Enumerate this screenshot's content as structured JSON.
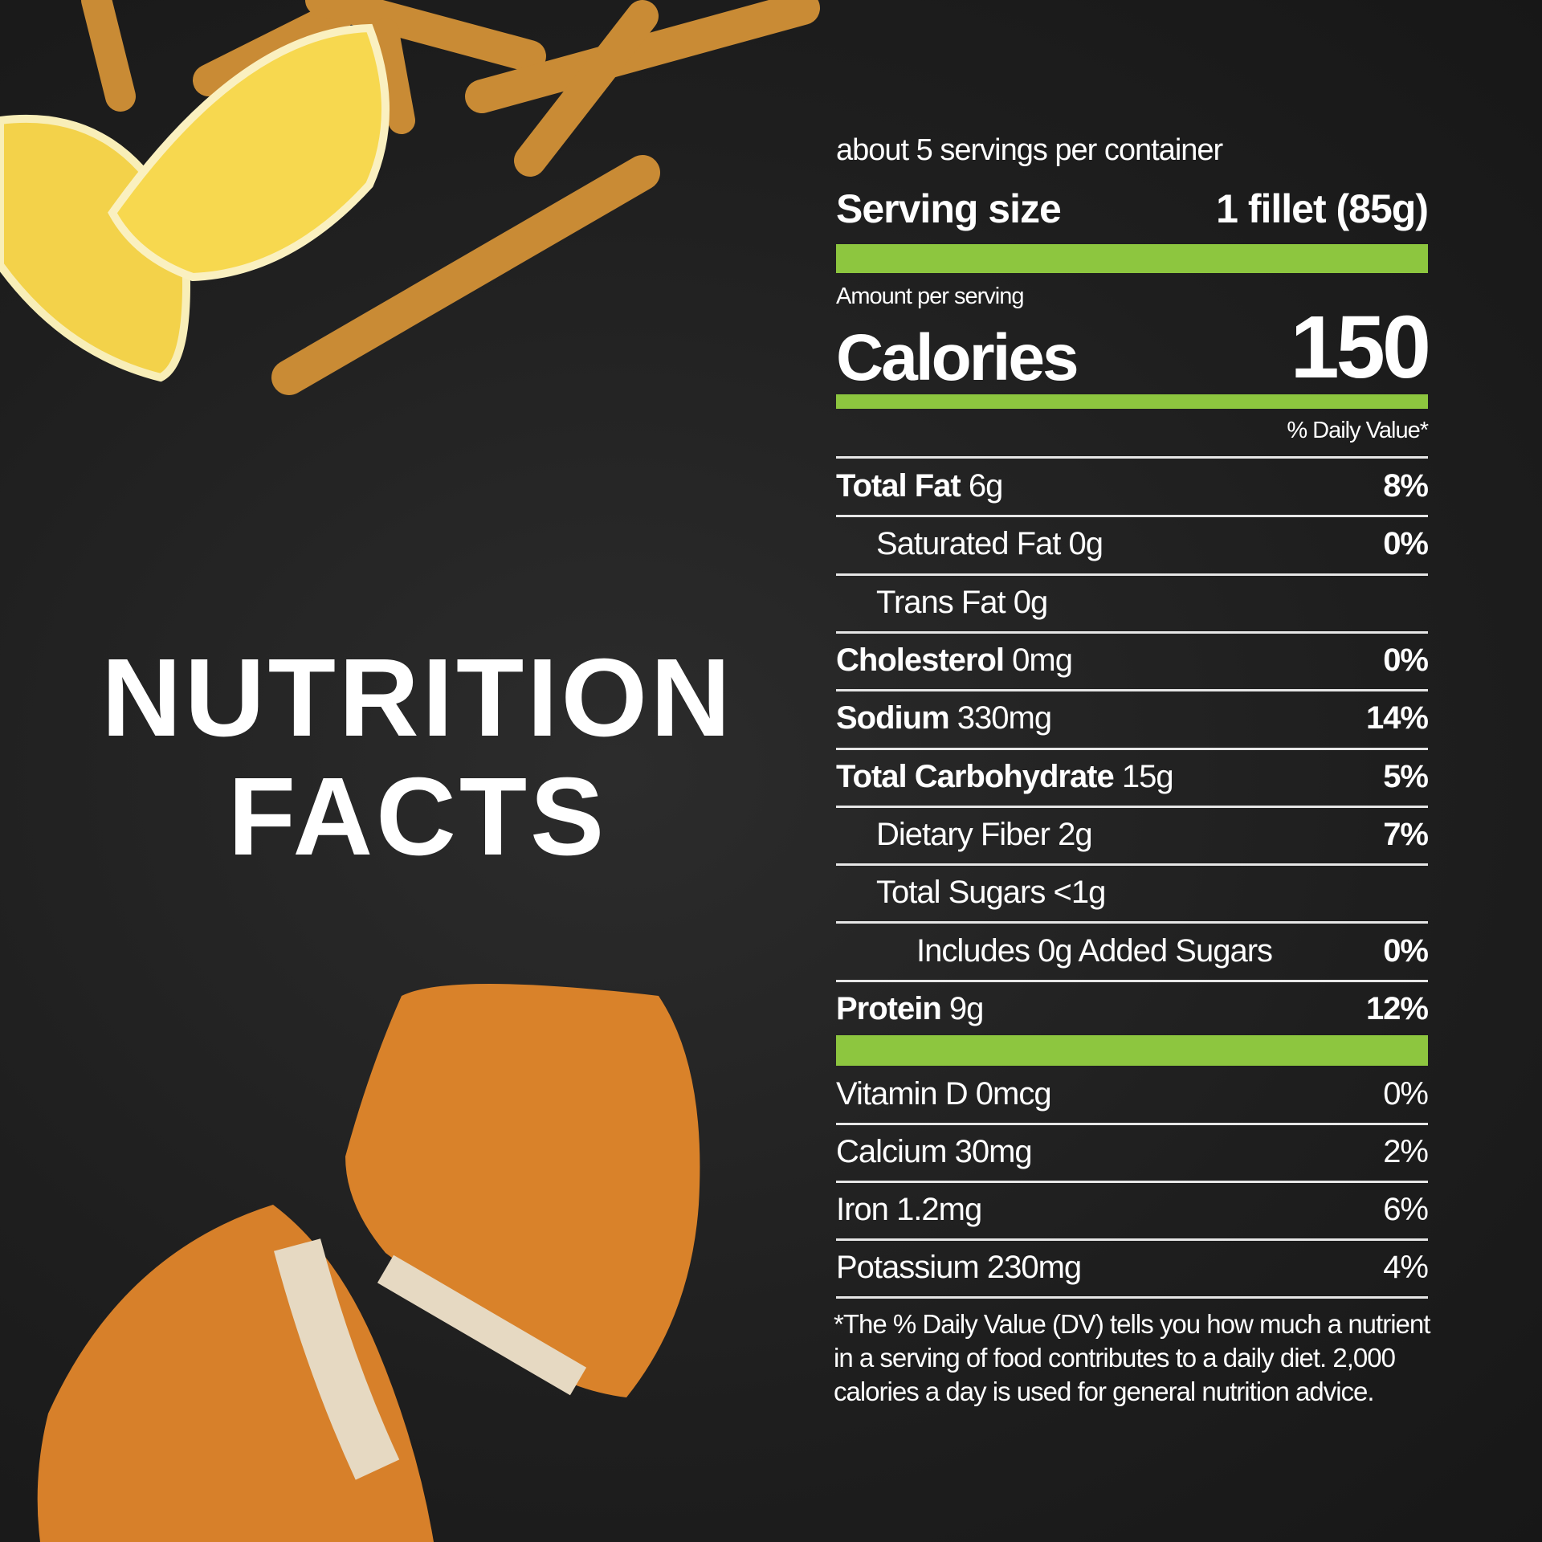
{
  "title": [
    "NUTRITION",
    "FACTS"
  ],
  "servings": "about 5 servings per container",
  "serving_size": {
    "label": "Serving size",
    "value": "1 fillet (85g)"
  },
  "amount_per_serving": "Amount per serving",
  "calories": {
    "label": "Calories",
    "value": 150
  },
  "daily_value_header": "% Daily Value*",
  "nutrients": [
    {
      "name": "Total Fat",
      "amount": "6g",
      "dv": "8%",
      "bold": true,
      "level": 0
    },
    {
      "name": "Saturated Fat",
      "amount": "0g",
      "dv": "0%",
      "bold": false,
      "level": 1
    },
    {
      "name": "Trans Fat",
      "amount": "0g",
      "bold": false,
      "level": 1
    },
    {
      "name": "Cholesterol",
      "amount": "0mg",
      "dv": "0%",
      "bold": true,
      "level": 0
    },
    {
      "name": "Sodium",
      "amount": "330mg",
      "dv": "14%",
      "bold": true,
      "level": 0
    },
    {
      "name": "Total Carbohydrate",
      "amount": "15g",
      "dv": "5%",
      "bold": true,
      "level": 0
    },
    {
      "name": "Dietary Fiber",
      "amount": "2g",
      "dv": "7%",
      "bold": false,
      "level": 1
    },
    {
      "name": "Total Sugars",
      "amount": "<1g",
      "bold": false,
      "level": 1
    },
    {
      "name": "Includes 0g Added Sugars",
      "dv": "0%",
      "bold": false,
      "level": 2
    },
    {
      "name": "Protein",
      "amount": "9g",
      "dv": "12%",
      "bold": true,
      "level": 0
    }
  ],
  "vitamins": [
    {
      "name": "Vitamin D",
      "amount": "0mcg",
      "dv": "0%"
    },
    {
      "name": "Calcium",
      "amount": "30mg",
      "dv": "2%"
    },
    {
      "name": "Iron",
      "amount": "1.2mg",
      "dv": "6%"
    },
    {
      "name": "Potassium",
      "amount": "230mg",
      "dv": "4%"
    }
  ],
  "footnote": "*The % Daily Value (DV) tells you how much a nutrient in a serving of food contributes to a daily diet. 2,000 calories a day is used for general nutrition advice."
}
